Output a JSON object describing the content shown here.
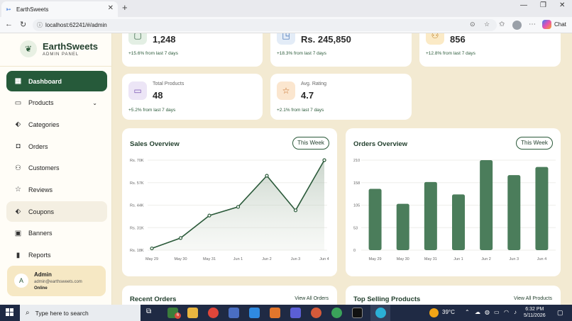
{
  "browser": {
    "tab_title": "EarthSweets",
    "url": "localhost:62241/#/admin",
    "copilot_label": "Chat"
  },
  "sidebar": {
    "brand": "EarthSweets",
    "subtitle": "ADMIN PANEL",
    "items": [
      {
        "label": "Dashboard",
        "icon": "dashboard-icon"
      },
      {
        "label": "Products",
        "icon": "box-icon"
      },
      {
        "label": "Categories",
        "icon": "tag-icon"
      },
      {
        "label": "Orders",
        "icon": "bag-icon"
      },
      {
        "label": "Customers",
        "icon": "users-icon"
      },
      {
        "label": "Reviews",
        "icon": "star-icon"
      },
      {
        "label": "Coupons",
        "icon": "tag-icon"
      },
      {
        "label": "Banners",
        "icon": "image-icon"
      },
      {
        "label": "Reports",
        "icon": "bars-icon"
      }
    ],
    "user": {
      "avatar": "A",
      "name": "Admin",
      "email": "admin@earthsweets.com",
      "status": "Online"
    }
  },
  "stats": [
    {
      "label": "",
      "value": "1,248",
      "trend": "+15.6% from last 7 days"
    },
    {
      "label": "",
      "value": "Rs. 245,850",
      "trend": "+18.3% from last 7 days"
    },
    {
      "label": "",
      "value": "856",
      "trend": "+12.8% from last 7 days"
    },
    {
      "label": "Total Products",
      "value": "48",
      "trend": "+5.2% from last 7 days"
    },
    {
      "label": "Avg. Rating",
      "value": "4.7",
      "trend": "+2.1% from last 7 days"
    }
  ],
  "sales": {
    "title": "Sales Overview",
    "button": "This Week"
  },
  "orders": {
    "title": "Orders Overview",
    "button": "This Week"
  },
  "recent": {
    "title": "Recent Orders",
    "link": "View All Orders"
  },
  "top": {
    "title": "Top Selling Products",
    "link": "View All Products"
  },
  "chart_data": [
    {
      "type": "area",
      "title": "Sales Overview",
      "categories": [
        "May 29",
        "May 30",
        "May 31",
        "Jun 1",
        "Jun 2",
        "Jun 3",
        "Jun 4"
      ],
      "values": [
        19000,
        25000,
        38000,
        43000,
        61000,
        41000,
        70000
      ],
      "y_ticks": [
        "Rs. 18K",
        "Rs. 31K",
        "Rs. 44K",
        "Rs. 57K",
        "Rs. 70K"
      ],
      "ylim": [
        18000,
        70000
      ],
      "grid": true,
      "colors": {
        "line": "#2b5a3a",
        "fill": "#d6ddd0"
      }
    },
    {
      "type": "bar",
      "title": "Orders Overview",
      "categories": [
        "May 29",
        "May 30",
        "May 31",
        "Jun 1",
        "Jun 2",
        "Jun 3",
        "Jun 4"
      ],
      "values": [
        143,
        108,
        159,
        130,
        210,
        175,
        194
      ],
      "y_ticks": [
        "0",
        "53",
        "105",
        "158",
        "210"
      ],
      "ylim": [
        0,
        210
      ],
      "grid": true,
      "colors": {
        "bar": "#4b7d5b"
      }
    }
  ],
  "taskbar": {
    "search_placeholder": "Type here to search",
    "weather": "39°C",
    "time": "6:32 PM",
    "date": "5/11/2026",
    "badge": "6"
  }
}
